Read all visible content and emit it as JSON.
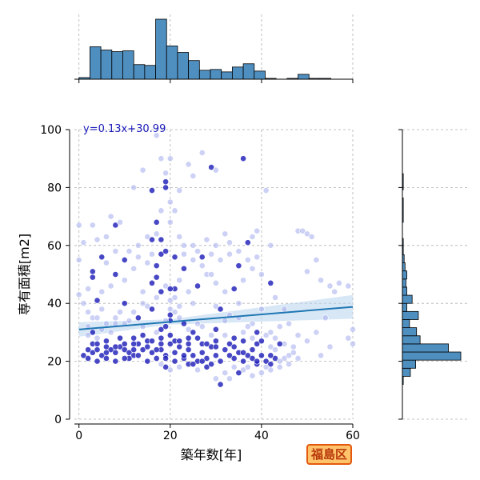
{
  "badge_label": "福島区",
  "chart_data": {
    "type": "scatter",
    "xlabel": "築年数[年]",
    "ylabel": "専有面積[m2]",
    "xlim": [
      -1,
      60
    ],
    "ylim": [
      0,
      100
    ],
    "xticks": [
      0,
      20,
      40,
      60
    ],
    "yticks": [
      0,
      20,
      40,
      60,
      80,
      100
    ],
    "grid": true,
    "colors": {
      "point_dark": "#1a1ab8",
      "point_light": "#aab2ee",
      "regression_line": "#1f77b4",
      "confidence_band": "#b8d4ec",
      "hist_fill": "#4f8fc0",
      "equation_text": "#1a1ab8"
    },
    "regression": {
      "label": "y=0.13x+30.99",
      "slope": 0.13,
      "intercept": 30.99
    },
    "top_histogram": {
      "bin_width": 2.4,
      "bin_start": 0,
      "counts": [
        2,
        40,
        36,
        34,
        35,
        18,
        17,
        74,
        41,
        33,
        23,
        11,
        12,
        9,
        15,
        19,
        10,
        1,
        0,
        1,
        6,
        1,
        1
      ]
    },
    "right_histogram": {
      "bin_width": 2.8,
      "bin_start": 12,
      "counts": [
        1,
        9,
        15,
        66,
        52,
        20,
        16,
        8,
        18,
        5,
        11,
        5,
        4,
        5,
        3,
        2,
        1,
        1,
        0,
        0,
        1,
        1,
        1,
        0,
        1,
        1,
        0,
        0,
        0,
        0,
        0
      ]
    },
    "scatter_points": [
      [
        0,
        43,
        0
      ],
      [
        3,
        30,
        1
      ],
      [
        3,
        35,
        0
      ],
      [
        5,
        31,
        0
      ],
      [
        2,
        29,
        0
      ],
      [
        4,
        28,
        0
      ],
      [
        1,
        22,
        1
      ],
      [
        2,
        21,
        1
      ],
      [
        3,
        23,
        1
      ],
      [
        4,
        24,
        1
      ],
      [
        5,
        22,
        1
      ],
      [
        6,
        25,
        1
      ],
      [
        7,
        24,
        1
      ],
      [
        8,
        23,
        1
      ],
      [
        9,
        25,
        1
      ],
      [
        10,
        24,
        1
      ],
      [
        11,
        23,
        1
      ],
      [
        12,
        22,
        1
      ],
      [
        13,
        26,
        1
      ],
      [
        14,
        24,
        1
      ],
      [
        15,
        25,
        1
      ],
      [
        16,
        23,
        1
      ],
      [
        17,
        21,
        1
      ],
      [
        18,
        24,
        1
      ],
      [
        19,
        22,
        1
      ],
      [
        20,
        26,
        1
      ],
      [
        21,
        23,
        1
      ],
      [
        22,
        25,
        1
      ],
      [
        23,
        21,
        1
      ],
      [
        24,
        24,
        1
      ],
      [
        25,
        22,
        1
      ],
      [
        26,
        20,
        1
      ],
      [
        27,
        23,
        1
      ],
      [
        28,
        21,
        1
      ],
      [
        29,
        25,
        1
      ],
      [
        30,
        22,
        1
      ],
      [
        31,
        20,
        1
      ],
      [
        32,
        24,
        1
      ],
      [
        33,
        22,
        1
      ],
      [
        34,
        21,
        1
      ],
      [
        35,
        23,
        1
      ],
      [
        36,
        20,
        1
      ],
      [
        37,
        22,
        1
      ],
      [
        38,
        21,
        1
      ],
      [
        39,
        19,
        1
      ],
      [
        40,
        22,
        1
      ],
      [
        41,
        20,
        1
      ],
      [
        42,
        19,
        1
      ],
      [
        43,
        21,
        1
      ],
      [
        44,
        20,
        0
      ],
      [
        3,
        26,
        1
      ],
      [
        6,
        27,
        1
      ],
      [
        9,
        28,
        1
      ],
      [
        12,
        26,
        1
      ],
      [
        15,
        27,
        1
      ],
      [
        18,
        28,
        1
      ],
      [
        21,
        27,
        1
      ],
      [
        24,
        28,
        1
      ],
      [
        27,
        26,
        1
      ],
      [
        30,
        27,
        1
      ],
      [
        33,
        26,
        1
      ],
      [
        36,
        27,
        1
      ],
      [
        39,
        26,
        1
      ],
      [
        42,
        25,
        0
      ],
      [
        2,
        32,
        0
      ],
      [
        8,
        33,
        0
      ],
      [
        14,
        32,
        0
      ],
      [
        20,
        34,
        1
      ],
      [
        26,
        33,
        0
      ],
      [
        32,
        34,
        0
      ],
      [
        38,
        33,
        0
      ],
      [
        44,
        32,
        0
      ],
      [
        5,
        38,
        0
      ],
      [
        10,
        40,
        1
      ],
      [
        15,
        39,
        0
      ],
      [
        20,
        41,
        0
      ],
      [
        25,
        40,
        0
      ],
      [
        30,
        39,
        0
      ],
      [
        35,
        40,
        0
      ],
      [
        40,
        38,
        0
      ],
      [
        3,
        51,
        1
      ],
      [
        3,
        49,
        1
      ],
      [
        4,
        41,
        1
      ],
      [
        5,
        44,
        0
      ],
      [
        7,
        46,
        0
      ],
      [
        8,
        50,
        1
      ],
      [
        10,
        48,
        0
      ],
      [
        12,
        52,
        0
      ],
      [
        14,
        44,
        0
      ],
      [
        16,
        47,
        1
      ],
      [
        17,
        49,
        1
      ],
      [
        17,
        53,
        1
      ],
      [
        18,
        57,
        1
      ],
      [
        18,
        62,
        1
      ],
      [
        17,
        68,
        1
      ],
      [
        17,
        64,
        0
      ],
      [
        16,
        62,
        1
      ],
      [
        18,
        72,
        0
      ],
      [
        19,
        80,
        1
      ],
      [
        19,
        85,
        0
      ],
      [
        19,
        82,
        1
      ],
      [
        20,
        90,
        0
      ],
      [
        18,
        90,
        0
      ],
      [
        17,
        98,
        0
      ],
      [
        20,
        75,
        0
      ],
      [
        21,
        72,
        0
      ],
      [
        22,
        79,
        0
      ],
      [
        24,
        88,
        0
      ],
      [
        25,
        84,
        0
      ],
      [
        27,
        92,
        0
      ],
      [
        29,
        87,
        1
      ],
      [
        30,
        86,
        0
      ],
      [
        36,
        90,
        1
      ],
      [
        41,
        79,
        0
      ],
      [
        14,
        86,
        0
      ],
      [
        12,
        80,
        0
      ],
      [
        16,
        79,
        1
      ],
      [
        3,
        67,
        0
      ],
      [
        4,
        62,
        0
      ],
      [
        6,
        63,
        0
      ],
      [
        7,
        70,
        0
      ],
      [
        8,
        67,
        1
      ],
      [
        9,
        68,
        0
      ],
      [
        11,
        58,
        0
      ],
      [
        13,
        60,
        0
      ],
      [
        15,
        63,
        0
      ],
      [
        20,
        68,
        0
      ],
      [
        22,
        63,
        0
      ],
      [
        23,
        60,
        0
      ],
      [
        26,
        58,
        0
      ],
      [
        28,
        62,
        0
      ],
      [
        30,
        60,
        0
      ],
      [
        32,
        64,
        0
      ],
      [
        33,
        61,
        0
      ],
      [
        35,
        58,
        0
      ],
      [
        37,
        61,
        1
      ],
      [
        38,
        63,
        0
      ],
      [
        39,
        65,
        0
      ],
      [
        42,
        60,
        0
      ],
      [
        48,
        65,
        0
      ],
      [
        49,
        65,
        0
      ],
      [
        50,
        64,
        0
      ],
      [
        51,
        63,
        0
      ],
      [
        50,
        51,
        0
      ],
      [
        52,
        55,
        0
      ],
      [
        53,
        48,
        0
      ],
      [
        55,
        46,
        0
      ],
      [
        56,
        44,
        0
      ],
      [
        57,
        47,
        0
      ],
      [
        59,
        46,
        0
      ],
      [
        60,
        31,
        0
      ],
      [
        60,
        26,
        0
      ],
      [
        59,
        28,
        0
      ],
      [
        54,
        35,
        0
      ],
      [
        52,
        30,
        0
      ],
      [
        50,
        27,
        0
      ],
      [
        48,
        29,
        0
      ],
      [
        46,
        33,
        0
      ],
      [
        47,
        25,
        0
      ],
      [
        53,
        22,
        0
      ],
      [
        55,
        25,
        0
      ],
      [
        45,
        38,
        0
      ],
      [
        43,
        42,
        0
      ],
      [
        42,
        47,
        1
      ],
      [
        40,
        50,
        0
      ],
      [
        38,
        52,
        0
      ],
      [
        36,
        48,
        0
      ],
      [
        34,
        45,
        1
      ],
      [
        32,
        44,
        0
      ],
      [
        30,
        47,
        0
      ],
      [
        28,
        50,
        0
      ],
      [
        26,
        46,
        1
      ],
      [
        24,
        44,
        0
      ],
      [
        22,
        48,
        0
      ],
      [
        21,
        45,
        1
      ],
      [
        23,
        52,
        1
      ],
      [
        25,
        55,
        0
      ],
      [
        27,
        53,
        0
      ],
      [
        29,
        50,
        0
      ],
      [
        31,
        38,
        1
      ],
      [
        33,
        36,
        0
      ],
      [
        35,
        35,
        0
      ],
      [
        37,
        32,
        0
      ],
      [
        39,
        30,
        1
      ],
      [
        41,
        29,
        0
      ],
      [
        43,
        28,
        0
      ],
      [
        45,
        26,
        0
      ],
      [
        46,
        22,
        0
      ],
      [
        44,
        18,
        0
      ],
      [
        42,
        17,
        0
      ],
      [
        40,
        16,
        0
      ],
      [
        38,
        15,
        0
      ],
      [
        36,
        17,
        0
      ],
      [
        34,
        18,
        0
      ],
      [
        32,
        16,
        0
      ],
      [
        30,
        14,
        0
      ],
      [
        31,
        12,
        1
      ],
      [
        33,
        14,
        0
      ],
      [
        35,
        16,
        1
      ],
      [
        37,
        18,
        0
      ],
      [
        39,
        20,
        1
      ],
      [
        41,
        18,
        0
      ],
      [
        28,
        18,
        1
      ],
      [
        26,
        17,
        0
      ],
      [
        24,
        19,
        1
      ],
      [
        22,
        18,
        0
      ],
      [
        20,
        17,
        0
      ],
      [
        19,
        18,
        1
      ],
      [
        18,
        19,
        0
      ],
      [
        17,
        30,
        0
      ],
      [
        18,
        31,
        1
      ],
      [
        19,
        32,
        1
      ],
      [
        19,
        34,
        0
      ],
      [
        20,
        36,
        1
      ],
      [
        20,
        38,
        0
      ],
      [
        21,
        37,
        0
      ],
      [
        22,
        35,
        0
      ],
      [
        23,
        33,
        1
      ],
      [
        24,
        31,
        0
      ],
      [
        25,
        30,
        1
      ],
      [
        27,
        32,
        0
      ],
      [
        29,
        29,
        0
      ],
      [
        30,
        31,
        1
      ],
      [
        32,
        29,
        0
      ],
      [
        34,
        28,
        1
      ],
      [
        36,
        30,
        0
      ],
      [
        38,
        28,
        0
      ],
      [
        40,
        27,
        1
      ],
      [
        42,
        30,
        0
      ],
      [
        12,
        37,
        0
      ],
      [
        13,
        35,
        1
      ],
      [
        14,
        40,
        0
      ],
      [
        16,
        38,
        1
      ],
      [
        17,
        42,
        0
      ],
      [
        18,
        44,
        1
      ],
      [
        19,
        46,
        0
      ],
      [
        20,
        45,
        1
      ],
      [
        21,
        42,
        0
      ],
      [
        22,
        39,
        0
      ],
      [
        8,
        35,
        0
      ],
      [
        9,
        37,
        0
      ],
      [
        10,
        33,
        0
      ],
      [
        11,
        34,
        0
      ],
      [
        7,
        30,
        0
      ],
      [
        6,
        33,
        0
      ],
      [
        4,
        35,
        0
      ],
      [
        2,
        37,
        0
      ],
      [
        1,
        40,
        0
      ],
      [
        0,
        55,
        0
      ],
      [
        0,
        67,
        0
      ],
      [
        1,
        61,
        0
      ],
      [
        2,
        45,
        0
      ],
      [
        5,
        56,
        1
      ],
      [
        6,
        54,
        0
      ],
      [
        8,
        58,
        0
      ],
      [
        10,
        55,
        1
      ],
      [
        13,
        56,
        0
      ],
      [
        15,
        54,
        0
      ],
      [
        16,
        57,
        0
      ],
      [
        19,
        58,
        1
      ],
      [
        21,
        56,
        1
      ],
      [
        23,
        57,
        0
      ],
      [
        25,
        60,
        0
      ],
      [
        27,
        56,
        1
      ],
      [
        29,
        57,
        0
      ],
      [
        31,
        55,
        0
      ],
      [
        33,
        57,
        0
      ],
      [
        35,
        53,
        1
      ],
      [
        37,
        55,
        0
      ],
      [
        39,
        56,
        0
      ],
      [
        12,
        28,
        1
      ],
      [
        14,
        29,
        1
      ],
      [
        16,
        27,
        1
      ],
      [
        18,
        26,
        1
      ],
      [
        20,
        29,
        1
      ],
      [
        22,
        27,
        1
      ],
      [
        24,
        26,
        1
      ],
      [
        26,
        28,
        1
      ],
      [
        28,
        26,
        1
      ],
      [
        30,
        25,
        1
      ],
      [
        11,
        21,
        1
      ],
      [
        13,
        22,
        1
      ],
      [
        15,
        20,
        1
      ],
      [
        17,
        24,
        1
      ],
      [
        19,
        21,
        1
      ],
      [
        21,
        20,
        1
      ],
      [
        23,
        22,
        1
      ],
      [
        25,
        19,
        1
      ],
      [
        27,
        20,
        1
      ],
      [
        29,
        19,
        1
      ],
      [
        4,
        20,
        1
      ],
      [
        6,
        21,
        1
      ],
      [
        8,
        20,
        1
      ],
      [
        10,
        21,
        1
      ],
      [
        2,
        24,
        1
      ],
      [
        4,
        26,
        1
      ],
      [
        6,
        23,
        1
      ],
      [
        8,
        25,
        1
      ],
      [
        10,
        26,
        1
      ],
      [
        12,
        24,
        1
      ],
      [
        42,
        22,
        1
      ],
      [
        43,
        24,
        0
      ],
      [
        44,
        26,
        1
      ],
      [
        45,
        21,
        0
      ],
      [
        46,
        19,
        0
      ],
      [
        47,
        23,
        0
      ],
      [
        48,
        21,
        0
      ],
      [
        38,
        24,
        1
      ],
      [
        36,
        23,
        1
      ],
      [
        34,
        25,
        1
      ]
    ]
  }
}
